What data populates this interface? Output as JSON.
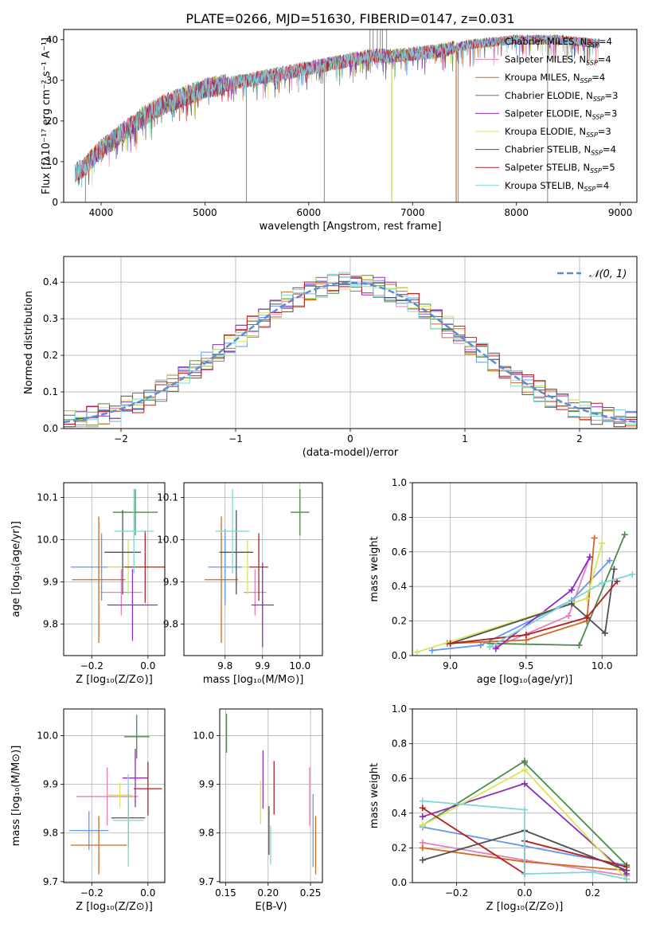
{
  "figure": {
    "title": "PLATE=0266, MJD=51630, FIBERID=0147, z=0.031"
  },
  "colors": [
    "#6495ed",
    "#e77fbd",
    "#d2691e",
    "#4e8a4e",
    "#8b2fb8",
    "#d4e65a",
    "#505050",
    "#b22222",
    "#7fd6d6"
  ],
  "legend": [
    {
      "text": "Chabrier MILES, N",
      "sub": "SSP",
      "tail": "=4"
    },
    {
      "text": "Salpeter MILES, N",
      "sub": "SSP",
      "tail": "=4"
    },
    {
      "text": "Kroupa MILES, N",
      "sub": "SSP",
      "tail": "=4"
    },
    {
      "text": "Chabrier ELODIE, N",
      "sub": "SSP",
      "tail": "=3"
    },
    {
      "text": "Salpeter ELODIE, N",
      "sub": "SSP",
      "tail": "=3"
    },
    {
      "text": "Kroupa ELODIE, N",
      "sub": "SSP",
      "tail": "=3"
    },
    {
      "text": "Chabrier STELIB, N",
      "sub": "SSP",
      "tail": "=4"
    },
    {
      "text": "Salpeter STELIB, N",
      "sub": "SSP",
      "tail": "=5"
    },
    {
      "text": "Kroupa STELIB, N",
      "sub": "SSP",
      "tail": "=4"
    }
  ],
  "chart_data": [
    {
      "type": "line",
      "xlabel": "wavelength [Angstrom, rest frame]",
      "ylabel": "Flux [fλ10⁻¹⁷ erg cm⁻² s⁻¹ A⁻¹]",
      "xlim": [
        3640,
        9160
      ],
      "ylim": [
        0,
        42.5
      ],
      "xticks": [
        4000,
        5000,
        6000,
        7000,
        8000,
        9000
      ],
      "yticks": [
        0,
        10,
        20,
        30,
        40
      ],
      "spectrum": {
        "x": [
          3750,
          3850,
          4000,
          4200,
          4400,
          4600,
          4800,
          5000,
          5200,
          5400,
          5600,
          5800,
          6000,
          6200,
          6400,
          6600,
          6800,
          7000,
          7200,
          7400,
          7600,
          7800,
          8000,
          8200,
          8400,
          8600,
          8800
        ],
        "y": [
          7,
          9,
          13,
          17,
          21,
          24,
          26,
          28,
          29,
          30,
          31,
          32,
          33,
          34,
          35,
          36,
          36,
          36.5,
          37,
          38,
          39,
          39.5,
          40,
          40,
          40,
          39.5,
          39
        ]
      }
    },
    {
      "type": "histogram",
      "xlabel": "(data-model)/error",
      "ylabel": "Normed distribution",
      "xlim": [
        -2.5,
        2.5
      ],
      "ylim": [
        0,
        0.47
      ],
      "xticks": [
        -2,
        -1,
        0,
        1,
        2
      ],
      "yticks": [
        0.0,
        0.1,
        0.2,
        0.3,
        0.4
      ],
      "legend": "𝒩(0, 1)",
      "bin_width": 0.1,
      "grid": true
    },
    {
      "type": "scatter",
      "name": "age-vs-Z",
      "xlabel": "Z [log₁₀(Z/Z⊙)]",
      "ylabel": "age  [log₁₀(age/yr)]",
      "xlim": [
        -0.3,
        0.06
      ],
      "ylim": [
        9.725,
        10.135
      ],
      "xticks": [
        -0.2,
        0.0
      ],
      "yticks": [
        9.8,
        9.9,
        10.0,
        10.1
      ],
      "points": [
        {
          "x": -0.165,
          "xe": 0.11,
          "y": 9.935,
          "ye": 0.08
        },
        {
          "x": -0.095,
          "xe": 0.075,
          "y": 9.875,
          "ye": 0.055
        },
        {
          "x": -0.175,
          "xe": 0.095,
          "y": 9.905,
          "ye": 0.15
        },
        {
          "x": -0.045,
          "xe": 0.08,
          "y": 10.065,
          "ye": 0.055
        },
        {
          "x": -0.055,
          "xe": 0.09,
          "y": 9.845,
          "ye": 0.085
        },
        {
          "x": -0.07,
          "xe": 0.075,
          "y": 9.935,
          "ye": 0.065
        },
        {
          "x": -0.09,
          "xe": 0.065,
          "y": 9.97,
          "ye": 0.1
        },
        {
          "x": -0.01,
          "xe": 0.075,
          "y": 9.935,
          "ye": 0.085
        },
        {
          "x": -0.05,
          "xe": 0.07,
          "y": 10.02,
          "ye": 0.1
        }
      ]
    },
    {
      "type": "scatter",
      "name": "age-vs-mass",
      "xlabel": "mass [log₁₀(M/M⊙)]",
      "ylabel": "",
      "xlim": [
        9.69,
        10.06
      ],
      "ylim": [
        9.725,
        10.135
      ],
      "xticks": [
        9.8,
        9.9,
        10.0
      ],
      "yticks": [
        9.8,
        9.9,
        10.0,
        10.1
      ],
      "points": [
        {
          "x": 9.8,
          "xe": 0.045,
          "y": 9.935,
          "ye": 0.09
        },
        {
          "x": 9.88,
          "xe": 0.03,
          "y": 9.875,
          "ye": 0.055
        },
        {
          "x": 9.79,
          "xe": 0.045,
          "y": 9.905,
          "ye": 0.15
        },
        {
          "x": 10.0,
          "xe": 0.025,
          "y": 10.065,
          "ye": 0.055
        },
        {
          "x": 9.9,
          "xe": 0.03,
          "y": 9.845,
          "ye": 0.1
        },
        {
          "x": 9.86,
          "xe": 0.015,
          "y": 9.935,
          "ye": 0.065
        },
        {
          "x": 9.83,
          "xe": 0.045,
          "y": 9.97,
          "ye": 0.1
        },
        {
          "x": 9.89,
          "xe": 0.025,
          "y": 9.935,
          "ye": 0.08
        },
        {
          "x": 9.82,
          "xe": 0.045,
          "y": 10.02,
          "ye": 0.1
        }
      ]
    },
    {
      "type": "line",
      "name": "mass-weight-vs-age",
      "xlabel": "age  [log₁₀(age/yr)]",
      "ylabel": "mass weight",
      "xlim": [
        8.75,
        10.23
      ],
      "ylim": [
        0,
        1
      ],
      "xticks": [
        9.0,
        9.5,
        10.0
      ],
      "yticks": [
        0.0,
        0.2,
        0.4,
        0.6,
        0.8,
        1.0
      ],
      "series": [
        {
          "x": [
            8.88,
            9.2,
            9.8,
            10.05
          ],
          "y": [
            0.03,
            0.06,
            0.32,
            0.55
          ]
        },
        {
          "x": [
            9.3,
            9.78,
            9.92
          ],
          "y": [
            0.05,
            0.23,
            0.57
          ]
        },
        {
          "x": [
            8.98,
            9.5,
            9.9,
            9.95
          ],
          "y": [
            0.07,
            0.09,
            0.2,
            0.68
          ]
        },
        {
          "x": [
            9.26,
            9.85,
            10.15
          ],
          "y": [
            0.07,
            0.06,
            0.7
          ]
        },
        {
          "x": [
            9.3,
            9.8,
            9.92
          ],
          "y": [
            0.04,
            0.38,
            0.57
          ]
        },
        {
          "x": [
            8.78,
            9.9,
            10.0
          ],
          "y": [
            0.02,
            0.33,
            0.65
          ]
        },
        {
          "x": [
            9.0,
            9.8,
            10.02,
            10.08
          ],
          "y": [
            0.07,
            0.3,
            0.13,
            0.5
          ]
        },
        {
          "x": [
            9.0,
            9.5,
            9.9,
            10.1
          ],
          "y": [
            0.07,
            0.12,
            0.22,
            0.43
          ]
        },
        {
          "x": [
            9.26,
            10.0,
            10.2
          ],
          "y": [
            0.05,
            0.42,
            0.47
          ]
        }
      ]
    },
    {
      "type": "scatter",
      "name": "mass-vs-Z",
      "xlabel": "Z [log₁₀(Z/Z⊙)]",
      "ylabel": "mass [log₁₀(M/M⊙)]",
      "xlim": [
        -0.3,
        0.06
      ],
      "ylim": [
        9.698,
        10.055
      ],
      "xticks": [
        -0.2,
        0.0
      ],
      "yticks": [
        9.7,
        9.8,
        9.9,
        10.0
      ],
      "points": [
        {
          "x": -0.21,
          "xe": 0.07,
          "y": 9.805,
          "ye": 0.04
        },
        {
          "x": -0.145,
          "xe": 0.11,
          "y": 9.875,
          "ye": 0.06
        },
        {
          "x": -0.175,
          "xe": 0.1,
          "y": 9.775,
          "ye": 0.06
        },
        {
          "x": -0.04,
          "xe": 0.045,
          "y": 9.998,
          "ye": 0.045
        },
        {
          "x": -0.045,
          "xe": 0.045,
          "y": 9.913,
          "ye": 0.06
        },
        {
          "x": -0.1,
          "xe": 0.045,
          "y": 9.878,
          "ye": 0.025
        },
        {
          "x": -0.07,
          "xe": 0.06,
          "y": 9.831,
          "ye": 0.06
        },
        {
          "x": -0.0,
          "xe": 0.05,
          "y": 9.891,
          "ye": 0.055
        },
        {
          "x": -0.07,
          "xe": 0.055,
          "y": 9.826,
          "ye": 0.095
        }
      ]
    },
    {
      "type": "scatter",
      "name": "mass-vs-EBV",
      "xlabel": "E(B-V)",
      "ylabel": "",
      "xlim": [
        0.143,
        0.264
      ],
      "ylim": [
        9.698,
        10.055
      ],
      "xticks": [
        0.15,
        0.2,
        0.25
      ],
      "yticks": [
        9.7,
        9.8,
        9.9,
        10.0
      ],
      "points": [
        {
          "x": 0.253,
          "y": 9.805,
          "ye": 0.075
        },
        {
          "x": 0.249,
          "y": 9.875,
          "ye": 0.06
        },
        {
          "x": 0.256,
          "y": 9.775,
          "ye": 0.06
        },
        {
          "x": 0.151,
          "y": 10.005,
          "ye": 0.04
        },
        {
          "x": 0.194,
          "y": 9.91,
          "ye": 0.06
        },
        {
          "x": 0.191,
          "y": 9.863,
          "ye": 0.045
        },
        {
          "x": 0.201,
          "y": 9.805,
          "ye": 0.05
        },
        {
          "x": 0.207,
          "y": 9.893,
          "ye": 0.055
        },
        {
          "x": 0.203,
          "y": 9.775,
          "ye": 0.04
        }
      ]
    },
    {
      "type": "line",
      "name": "mass-weight-vs-Z",
      "xlabel": "Z [log₁₀(Z/Z⊙)]",
      "ylabel": "mass weight",
      "xlim": [
        -0.33,
        0.33
      ],
      "ylim": [
        0,
        1
      ],
      "xticks": [
        -0.2,
        0.0,
        0.2
      ],
      "yticks": [
        0.0,
        0.2,
        0.4,
        0.6,
        0.8,
        1.0
      ],
      "series": [
        {
          "x": [
            -0.3,
            0.0,
            0.3
          ],
          "y": [
            0.32,
            0.21,
            0.1
          ]
        },
        {
          "x": [
            -0.3,
            0.0,
            0.3
          ],
          "y": [
            0.23,
            0.13,
            0.04
          ]
        },
        {
          "x": [
            -0.3,
            0.0,
            0.3
          ],
          "y": [
            0.2,
            0.12,
            0.07
          ]
        },
        {
          "x": [
            -0.3,
            0.0,
            0.0,
            0.3
          ],
          "y": [
            0.33,
            0.7,
            0.69,
            0.1
          ]
        },
        {
          "x": [
            -0.3,
            0.0,
            0.3
          ],
          "y": [
            0.38,
            0.57,
            0.05
          ]
        },
        {
          "x": [
            -0.3,
            0.0,
            0.3
          ],
          "y": [
            0.33,
            0.65,
            0.02
          ]
        },
        {
          "x": [
            -0.3,
            0.0,
            0.3
          ],
          "y": [
            0.13,
            0.3,
            0.07
          ]
        },
        {
          "x": [
            -0.3,
            0.0,
            0.0,
            0.3
          ],
          "y": [
            0.43,
            0.05,
            0.24,
            0.09
          ]
        },
        {
          "x": [
            -0.3,
            0.0,
            0.0,
            0.2,
            0.3
          ],
          "y": [
            0.47,
            0.42,
            0.05,
            0.06,
            0.02
          ]
        }
      ]
    }
  ]
}
